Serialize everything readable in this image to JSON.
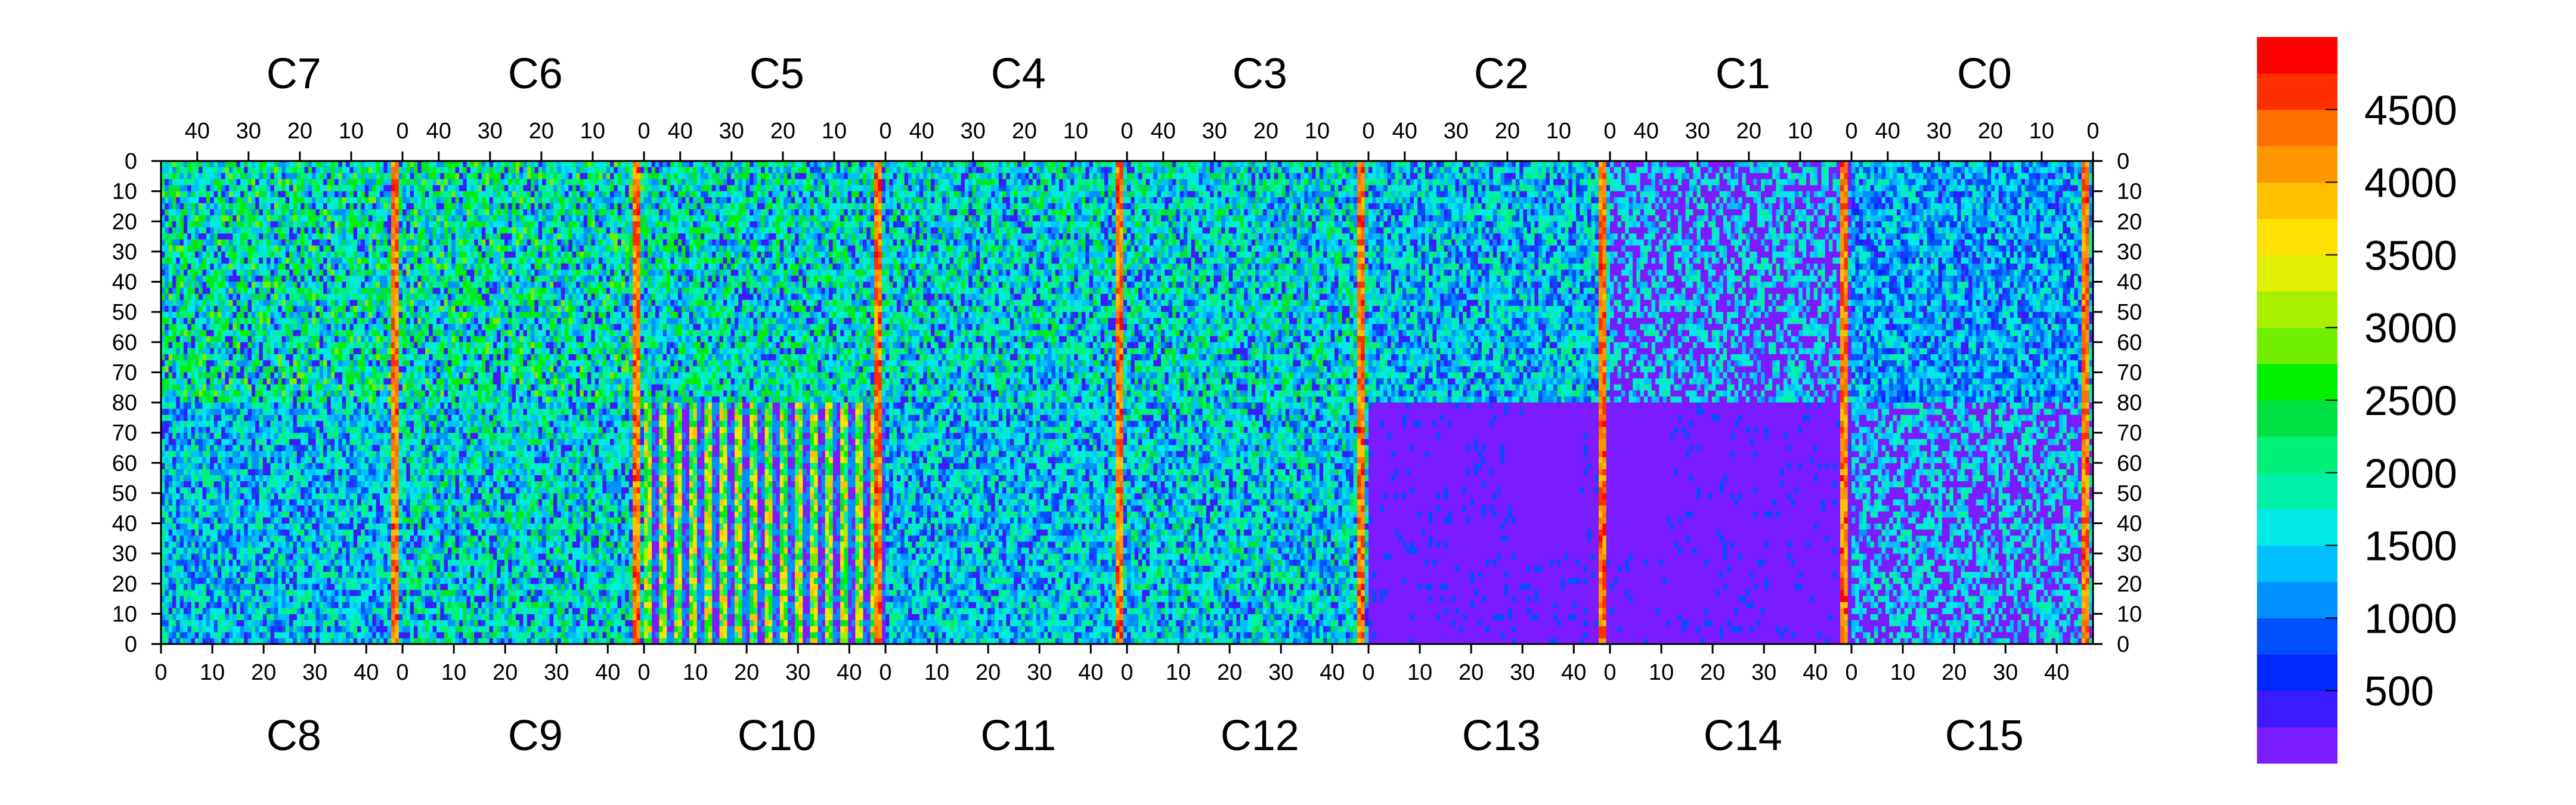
{
  "chart_data": {
    "type": "heatmap",
    "title": "",
    "top_chip_labels": [
      "C7",
      "C6",
      "C5",
      "C4",
      "C3",
      "C2",
      "C1",
      "C0"
    ],
    "bottom_chip_labels": [
      "C8",
      "C9",
      "C10",
      "C11",
      "C12",
      "C13",
      "C14",
      "C15"
    ],
    "top_x_ticks": [
      "40",
      "30",
      "20",
      "10",
      "0"
    ],
    "bottom_x_ticks": [
      "0",
      "10",
      "20",
      "30",
      "40"
    ],
    "y_ticks_top_half": [
      "0",
      "10",
      "20",
      "30",
      "40",
      "50",
      "60",
      "70",
      "80"
    ],
    "y_ticks_bottom_half": [
      "80",
      "70",
      "60",
      "50",
      "40",
      "30",
      "20",
      "10",
      "0"
    ],
    "colorbar": {
      "min": 0,
      "max": 5000,
      "tick_labels": [
        "500",
        "1000",
        "1500",
        "2000",
        "2500",
        "3000",
        "3500",
        "4000",
        "4500"
      ],
      "tick_values": [
        500,
        1000,
        1500,
        2000,
        2500,
        3000,
        3500,
        4000,
        4500
      ],
      "colors": [
        "#7a1cff",
        "#3c1cff",
        "#0028ff",
        "#0050ff",
        "#0090ff",
        "#00c0ff",
        "#00e8e8",
        "#00f0a8",
        "#00f078",
        "#00e040",
        "#00f000",
        "#70f000",
        "#a8f000",
        "#e0f000",
        "#ffe000",
        "#ffc000",
        "#ff9800",
        "#ff7000",
        "#ff3000",
        "#ff0000"
      ]
    },
    "chips": [
      {
        "name": "C7",
        "mean": 1900,
        "pattern": "busy"
      },
      {
        "name": "C6",
        "mean": 1900,
        "pattern": "busy"
      },
      {
        "name": "C5",
        "mean": 1800,
        "pattern": "busy"
      },
      {
        "name": "C4",
        "mean": 1700,
        "pattern": "busy"
      },
      {
        "name": "C3",
        "mean": 1700,
        "pattern": "busy"
      },
      {
        "name": "C2",
        "mean": 1500,
        "pattern": "busy"
      },
      {
        "name": "C1",
        "mean": 900,
        "pattern": "quiet"
      },
      {
        "name": "C0",
        "mean": 1300,
        "pattern": "busy"
      },
      {
        "name": "C8",
        "mean": 1500,
        "pattern": "busy"
      },
      {
        "name": "C9",
        "mean": 1700,
        "pattern": "busy"
      },
      {
        "name": "C10",
        "mean": 2600,
        "pattern": "striped"
      },
      {
        "name": "C11",
        "mean": 1500,
        "pattern": "busy"
      },
      {
        "name": "C12",
        "mean": 1600,
        "pattern": "busy"
      },
      {
        "name": "C13",
        "mean": 500,
        "pattern": "empty"
      },
      {
        "name": "C14",
        "mean": 500,
        "pattern": "empty"
      },
      {
        "name": "C15",
        "mean": 800,
        "pattern": "quiet"
      }
    ]
  }
}
